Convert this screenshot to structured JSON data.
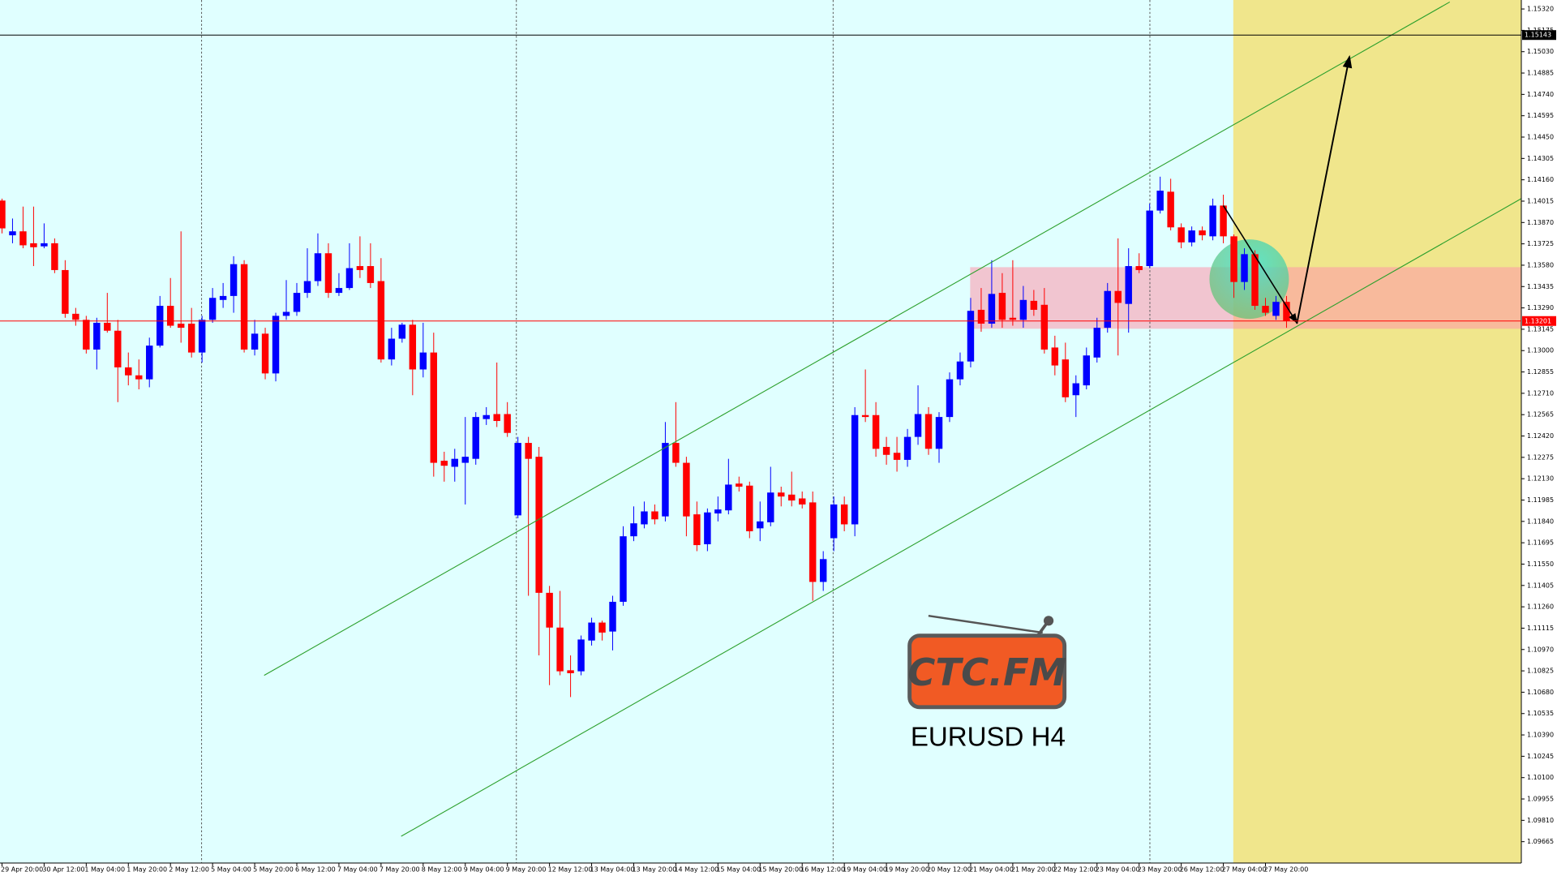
{
  "chart_data": {
    "type": "candlestick",
    "title": "EURUSD H4",
    "annotations": [
      "CTC.FM"
    ],
    "up_color": "#0000ff",
    "down_color": "#ff0000",
    "xlim": [
      -0.19,
      144.3
    ],
    "ylim": [
      1.0952,
      1.15381
    ],
    "xticks": [
      {
        "value": 0,
        "label": "29 Apr 20:00"
      },
      {
        "value": 4,
        "label": "30 Apr 12:00"
      },
      {
        "value": 8,
        "label": "1 May 04:00"
      },
      {
        "value": 12,
        "label": "1 May 20:00"
      },
      {
        "value": 16,
        "label": "2 May 12:00"
      },
      {
        "value": 20,
        "label": "5 May 04:00"
      },
      {
        "value": 24,
        "label": "5 May 20:00"
      },
      {
        "value": 28,
        "label": "6 May 12:00"
      },
      {
        "value": 32,
        "label": "7 May 04:00"
      },
      {
        "value": 36,
        "label": "7 May 20:00"
      },
      {
        "value": 40,
        "label": "8 May 12:00"
      },
      {
        "value": 44,
        "label": "9 May 04:00"
      },
      {
        "value": 48,
        "label": "9 May 20:00"
      },
      {
        "value": 52,
        "label": "12 May 12:00"
      },
      {
        "value": 56,
        "label": "13 May 04:00"
      },
      {
        "value": 60,
        "label": "13 May 20:00"
      },
      {
        "value": 64,
        "label": "14 May 12:00"
      },
      {
        "value": 68,
        "label": "15 May 04:00"
      },
      {
        "value": 72,
        "label": "15 May 20:00"
      },
      {
        "value": 76,
        "label": "16 May 12:00"
      },
      {
        "value": 80,
        "label": "19 May 04:00"
      },
      {
        "value": 84,
        "label": "19 May 20:00"
      },
      {
        "value": 88,
        "label": "20 May 12:00"
      },
      {
        "value": 92,
        "label": "21 May 04:00"
      },
      {
        "value": 96,
        "label": "21 May 20:00"
      },
      {
        "value": 100,
        "label": "22 May 12:00"
      },
      {
        "value": 104,
        "label": "23 May 04:00"
      },
      {
        "value": 108,
        "label": "23 May 20:00"
      },
      {
        "value": 112,
        "label": "26 May 12:00"
      },
      {
        "value": 116,
        "label": "27 May 04:00"
      },
      {
        "value": 120,
        "label": "27 May 20:00"
      }
    ],
    "yticks": [
      {
        "value": 1.1532,
        "label": "1.15320"
      },
      1.15175,
      {
        "value": 1.1503,
        "label": "1.15030"
      },
      1.14885,
      {
        "value": 1.1474,
        "label": "1.14740"
      },
      1.14595,
      {
        "value": 1.1445,
        "label": "1.14450"
      },
      1.14305,
      {
        "value": 1.1416,
        "label": "1.14160"
      },
      1.14015,
      {
        "value": 1.1387,
        "label": "1.13870"
      },
      1.13725,
      {
        "value": 1.1358,
        "label": "1.13580"
      },
      1.13435,
      {
        "value": 1.1329,
        "label": "1.13290"
      },
      1.13145,
      {
        "value": 1.13,
        "label": "1.13000"
      },
      1.12855,
      {
        "value": 1.1271,
        "label": "1.12710"
      },
      1.12565,
      {
        "value": 1.1242,
        "label": "1.12420"
      },
      1.12275,
      {
        "value": 1.1213,
        "label": "1.12130"
      },
      1.11985,
      {
        "value": 1.1184,
        "label": "1.11840"
      },
      1.11695,
      {
        "value": 1.1155,
        "label": "1.11550"
      },
      1.11405,
      {
        "value": 1.1126,
        "label": "1.11260"
      },
      1.11115,
      {
        "value": 1.1097,
        "label": "1.10970"
      },
      1.10825,
      {
        "value": 1.1068,
        "label": "1.10680"
      },
      1.10535,
      {
        "value": 1.1039,
        "label": "1.10390"
      },
      1.10245,
      {
        "value": 1.101,
        "label": "1.10100"
      },
      1.09955,
      {
        "value": 1.0981,
        "label": "1.09810"
      },
      1.09665
    ],
    "hlines": [
      {
        "value": 1.15143,
        "label": "1.15143",
        "color": "#000000"
      },
      {
        "value": 1.13201,
        "label": "1.13201",
        "color": "#ff0000"
      }
    ],
    "open": [
      1.14019,
      1.13783,
      1.1381,
      1.13729,
      1.13708,
      1.13729,
      1.13547,
      1.1325,
      1.13209,
      1.13007,
      1.13189,
      1.13135,
      1.12886,
      1.12832,
      1.12805,
      1.13034,
      1.13304,
      1.13183,
      1.13183,
      1.12987,
      1.13209,
      1.13344,
      1.13371,
      1.13587,
      1.13007,
      1.13115,
      1.12845,
      1.13236,
      1.13263,
      1.13392,
      1.13472,
      1.13661,
      1.13392,
      1.13425,
      1.13574,
      1.13574,
      1.13472,
      1.1294,
      1.13081,
      1.13176,
      1.12872,
      1.12987,
      1.12252,
      1.12211,
      1.12238,
      1.12265,
      1.12535,
      1.12569,
      1.12569,
      1.11881,
      1.12373,
      1.12279,
      1.11355,
      1.11119,
      1.10829,
      1.10822,
      1.11031,
      1.11153,
      1.11092,
      1.11294,
      1.11739,
      1.1182,
      1.11908,
      1.11874,
      1.12373,
      1.12238,
      1.11888,
      1.11685,
      1.11894,
      1.11915,
      1.12097,
      1.12083,
      1.11793,
      1.11834,
      1.12036,
      1.12022,
      1.11996,
      1.11969,
      1.11429,
      1.11726,
      1.11955,
      1.1182,
      1.12562,
      1.12562,
      1.12346,
      1.12306,
      1.12258,
      1.12414,
      1.12569,
      1.12333,
      1.12549,
      1.12805,
      1.12926,
      1.13277,
      1.13183,
      1.13392,
      1.13223,
      1.13209,
      1.13338,
      1.13311,
      1.13021,
      1.1294,
      1.12697,
      1.12764,
      1.12953,
      1.13155,
      1.13405,
      1.13317,
      1.13574,
      1.13574,
      1.13951,
      1.14079,
      1.13837,
      1.13735,
      1.13816,
      1.13776,
      1.13985,
      1.13776,
      1.13466,
      1.13655,
      1.13304,
      1.13236,
      1.13331
    ],
    "high": [
      1.14032,
      1.13897,
      1.13978,
      1.13978,
      1.13864,
      1.13762,
      1.13614,
      1.1329,
      1.13236,
      1.13223,
      1.13392,
      1.13209,
      1.12987,
      1.1294,
      1.13088,
      1.13371,
      1.13493,
      1.1381,
      1.1329,
      1.13236,
      1.13425,
      1.13459,
      1.13641,
      1.13614,
      1.13209,
      1.13155,
      1.13257,
      1.13479,
      1.13459,
      1.13695,
      1.13796,
      1.13729,
      1.13526,
      1.13729,
      1.13776,
      1.13729,
      1.13628,
      1.13155,
      1.13189,
      1.13209,
      1.13189,
      1.13122,
      1.12313,
      1.12333,
      1.12549,
      1.12582,
      1.12616,
      1.12919,
      1.1265,
      1.12414,
      1.12414,
      1.12346,
      1.11402,
      1.11368,
      1.1093,
      1.11065,
      1.11186,
      1.11166,
      1.11335,
      1.11807,
      1.11942,
      1.11975,
      1.11955,
      1.12515,
      1.1265,
      1.12279,
      1.11975,
      1.11928,
      1.12009,
      1.12265,
      1.12144,
      1.1211,
      1.11975,
      1.12211,
      1.12076,
      1.12178,
      1.12043,
      1.12043,
      1.11638,
      1.12009,
      1.12009,
      1.12616,
      1.12872,
      1.1265,
      1.12414,
      1.12414,
      1.12468,
      1.12764,
      1.12616,
      1.12582,
      1.12852,
      1.12987,
      1.13358,
      1.13425,
      1.13614,
      1.13526,
      1.13614,
      1.13439,
      1.13412,
      1.13425,
      1.13101,
      1.13054,
      1.12832,
      1.13021,
      1.13223,
      1.13459,
      1.13762,
      1.13695,
      1.13661,
      1.13998,
      1.14181,
      1.14167,
      1.13864,
      1.13843,
      1.13843,
      1.14032,
      1.14059,
      1.13789,
      1.13695,
      1.13681,
      1.13358,
      1.13371,
      1.13371
    ],
    "low": [
      1.13796,
      1.13729,
      1.13695,
      1.13574,
      1.13695,
      1.13526,
      1.13223,
      1.13169,
      1.1298,
      1.12872,
      1.13122,
      1.1265,
      1.12764,
      1.12737,
      1.12751,
      1.13021,
      1.13155,
      1.13054,
      1.12953,
      1.12919,
      1.13189,
      1.1329,
      1.13257,
      1.12987,
      1.12967,
      1.12805,
      1.12791,
      1.13209,
      1.13236,
      1.13358,
      1.13439,
      1.13358,
      1.13371,
      1.13412,
      1.13493,
      1.13425,
      1.12919,
      1.12899,
      1.13054,
      1.12697,
      1.12818,
      1.12144,
      1.1211,
      1.1211,
      1.11955,
      1.12225,
      1.12495,
      1.12481,
      1.12414,
      1.11861,
      1.11335,
      1.1093,
      1.10728,
      1.10795,
      1.10647,
      1.10795,
      1.10997,
      1.11031,
      1.10964,
      1.11267,
      1.11706,
      1.11793,
      1.1182,
      1.1184,
      1.12211,
      1.11739,
      1.11638,
      1.11638,
      1.1184,
      1.11888,
      1.12043,
      1.11726,
      1.11706,
      1.11807,
      1.11942,
      1.11942,
      1.11928,
      1.11301,
      1.11368,
      1.11638,
      1.11773,
      1.11739,
      1.12515,
      1.12279,
      1.12225,
      1.12178,
      1.12211,
      1.1236,
      1.12292,
      1.12238,
      1.12515,
      1.12764,
      1.12886,
      1.13128,
      1.13155,
      1.13155,
      1.13169,
      1.13155,
      1.13236,
      1.1298,
      1.12832,
      1.1265,
      1.12549,
      1.12737,
      1.12919,
      1.13122,
      1.12967,
      1.13122,
      1.13526,
      1.1356,
      1.13931,
      1.13816,
      1.13695,
      1.13708,
      1.13749,
      1.13749,
      1.13729,
      1.13358,
      1.13412,
      1.13277,
      1.13236,
      1.13209,
      1.13155
    ],
    "close": [
      1.1383,
      1.1381,
      1.13715,
      1.13702,
      1.13729,
      1.13547,
      1.1325,
      1.13209,
      1.13007,
      1.13189,
      1.13135,
      1.12886,
      1.12832,
      1.12805,
      1.13034,
      1.13304,
      1.13169,
      1.13155,
      1.12987,
      1.13209,
      1.13358,
      1.13371,
      1.13587,
      1.13007,
      1.13115,
      1.12845,
      1.13236,
      1.13263,
      1.13392,
      1.13472,
      1.13661,
      1.13392,
      1.13425,
      1.1356,
      1.13547,
      1.13459,
      1.1294,
      1.13081,
      1.13176,
      1.12872,
      1.12987,
      1.12238,
      1.12218,
      1.12265,
      1.12279,
      1.12549,
      1.12562,
      1.12522,
      1.12441,
      1.12373,
      1.12265,
      1.11355,
      1.11119,
      1.10822,
      1.10809,
      1.11038,
      1.11153,
      1.11085,
      1.11294,
      1.11739,
      1.11827,
      1.11908,
      1.11854,
      1.12373,
      1.12238,
      1.11874,
      1.11679,
      1.11901,
      1.11921,
      1.1209,
      1.12076,
      1.11773,
      1.1184,
      1.12036,
      1.12009,
      1.11982,
      1.11955,
      1.11429,
      1.11584,
      1.11955,
      1.1182,
      1.12562,
      1.12549,
      1.12333,
      1.12292,
      1.12258,
      1.12414,
      1.12569,
      1.12333,
      1.12549,
      1.12805,
      1.12926,
      1.1327,
      1.13183,
      1.13385,
      1.13209,
      1.13209,
      1.13344,
      1.13277,
      1.13007,
      1.12899,
      1.12683,
      1.12778,
      1.12967,
      1.13155,
      1.13405,
      1.13324,
      1.13574,
      1.13547,
      1.13951,
      1.14086,
      1.13837,
      1.13735,
      1.13816,
      1.13783,
      1.13985,
      1.13776,
      1.13466,
      1.13655,
      1.13304,
      1.13257,
      1.13331,
      1.13201
    ]
  }
}
